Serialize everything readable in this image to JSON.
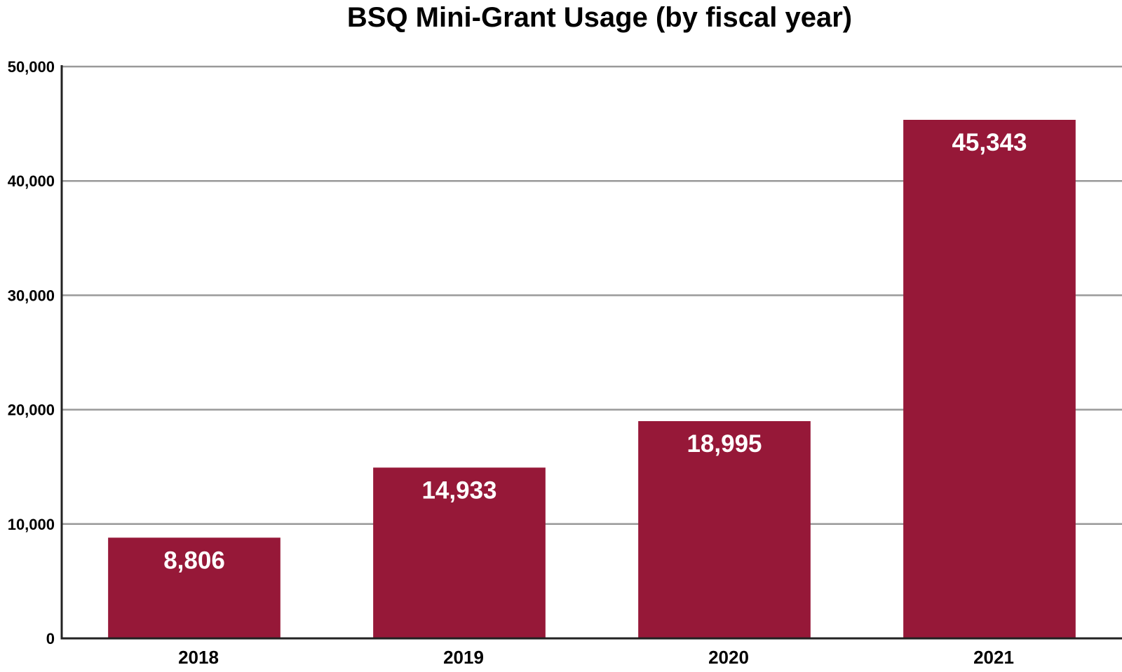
{
  "chart_data": {
    "type": "bar",
    "title": "BSQ Mini-Grant Usage (by fiscal year)",
    "xlabel": "",
    "ylabel": "",
    "categories": [
      "2018",
      "2019",
      "2020",
      "2021"
    ],
    "values": [
      8806,
      14933,
      18995,
      45343
    ],
    "data_labels": [
      "8,806",
      "14,933",
      "18,995",
      "45,343"
    ],
    "ylim": [
      0,
      50000
    ],
    "yticks": [
      0,
      10000,
      20000,
      30000,
      40000,
      50000
    ],
    "ytick_labels": [
      "0",
      "10,000",
      "20,000",
      "30,000",
      "40,000",
      "50,000"
    ],
    "grid": true,
    "legend": "none",
    "bar_color": "#961838",
    "grid_color": "#999999",
    "axis_color": "#222222"
  }
}
